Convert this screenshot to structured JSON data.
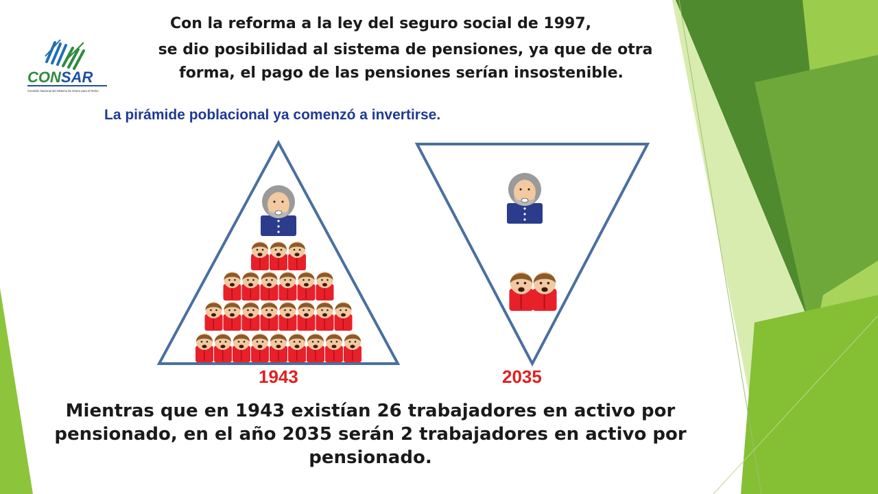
{
  "logo": {
    "name": "CONSAR",
    "part1": "CON",
    "part2": "SAR",
    "tagline": "Comisión Nacional del Sistema de Ahorro para el Retiro"
  },
  "header": {
    "lines": [
      "Con la reforma a la ley del seguro social de 1997,",
      "se dio posibilidad al sistema de pensiones, ya que de otra",
      "forma, el pago de las pensiones serían insostenible."
    ]
  },
  "subtitle": "La pirámide poblacional ya comenzó a invertirse.",
  "diagram": {
    "pyramid_1943": {
      "year": "1943",
      "pensioners": 1,
      "workers_per_row": [
        3,
        6,
        8,
        9
      ],
      "workers_total": 26
    },
    "pyramid_2035": {
      "year": "2035",
      "pensioners": 1,
      "workers_total": 2
    }
  },
  "footer": {
    "text": "Mientras que en 1943 existían 26 trabajadores en activo por pensionado, en el año 2035 serán 2 trabajadores en activo por pensionado."
  },
  "colors": {
    "triangle_outline": "#4a6fa0",
    "worker_shirt": "#e8202a",
    "pensioner_jacket": "#2c3c8c",
    "year_label": "#e02020",
    "subtitle": "#1f3a93",
    "green_dark": "#4f8a2e",
    "green_light": "#8cc43c",
    "logo_blue": "#1f6fb2",
    "logo_green": "#2e8b3e"
  }
}
